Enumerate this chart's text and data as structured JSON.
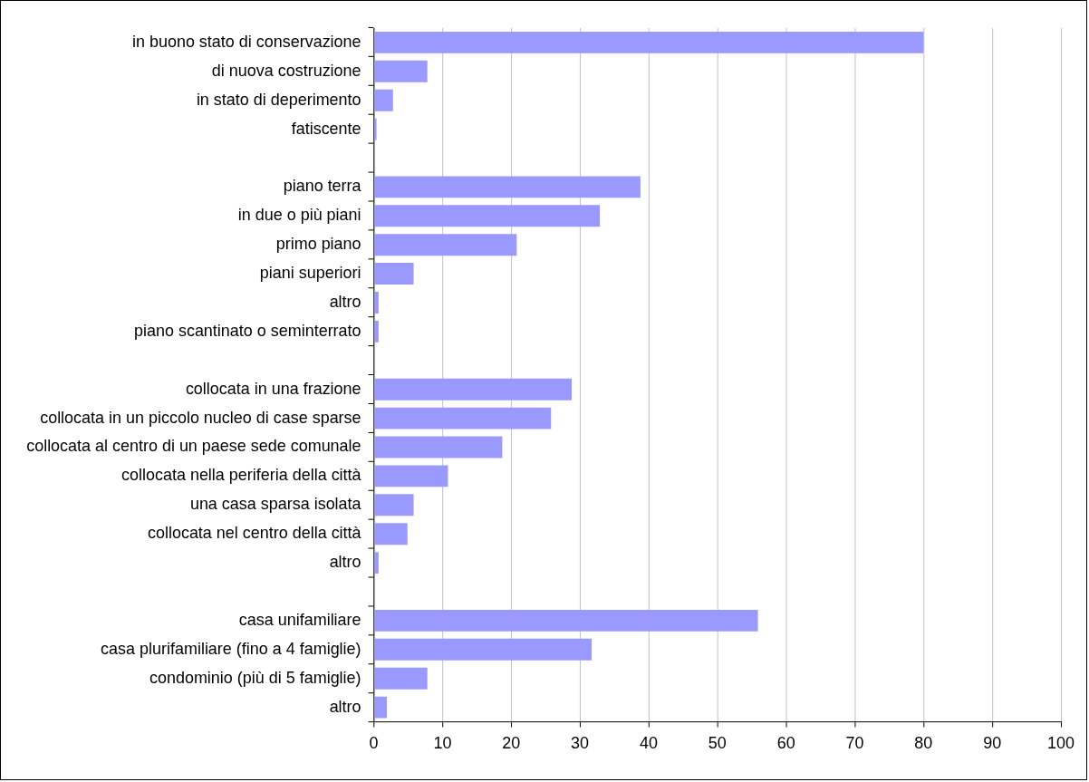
{
  "chart_data": {
    "type": "bar",
    "orientation": "horizontal",
    "categories": [
      "in buono stato di conservazione",
      "di nuova costruzione",
      "in stato di deperimento",
      "fatiscente",
      null,
      "piano terra",
      "in due o più piani",
      "primo piano",
      "piani superiori",
      "altro",
      "piano scantinato o seminterrato",
      null,
      "collocata in una frazione",
      "collocata in un piccolo nucleo di case sparse",
      "collocata al centro di un paese sede comunale",
      "collocata nella periferia della città",
      "una casa sparsa isolata",
      "collocata nel centro della città",
      "altro",
      null,
      "casa unifamiliare",
      "casa plurifamiliare (fino a 4 famiglie)",
      "condominio (più di 5 famiglie)",
      "altro"
    ],
    "values": [
      80,
      7.8,
      2.8,
      0.4,
      null,
      38.8,
      32.9,
      20.8,
      5.8,
      0.7,
      0.7,
      null,
      28.8,
      25.8,
      18.7,
      10.8,
      5.8,
      4.9,
      0.7,
      null,
      55.9,
      31.7,
      7.8,
      1.9
    ],
    "color": "#9999ff",
    "xlim": [
      0,
      100
    ],
    "xticks": [
      0,
      10,
      20,
      30,
      40,
      50,
      60,
      70,
      80,
      90,
      100
    ],
    "grid": "x",
    "legend": false
  }
}
